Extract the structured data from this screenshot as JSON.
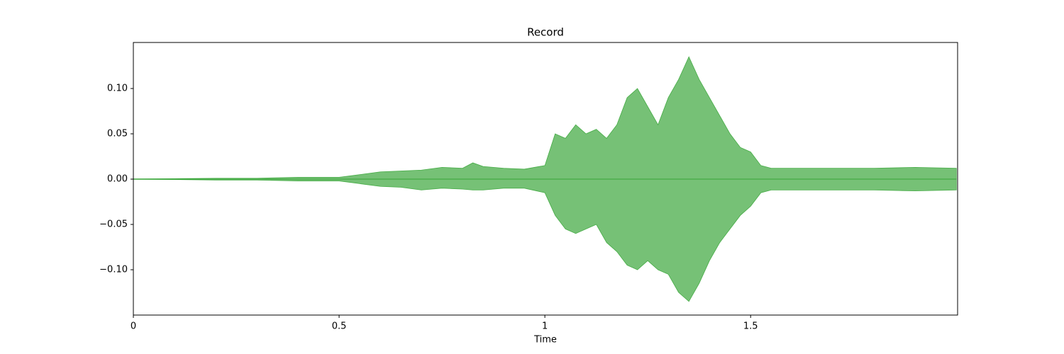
{
  "chart_data": {
    "type": "waveform",
    "title": "Record",
    "x_label": "Time",
    "x": [
      0,
      0.1,
      0.2,
      0.3,
      0.4,
      0.5,
      0.55,
      0.6,
      0.65,
      0.7,
      0.75,
      0.8,
      0.825,
      0.85,
      0.9,
      0.95,
      1.0,
      1.025,
      1.05,
      1.075,
      1.1,
      1.125,
      1.15,
      1.175,
      1.2,
      1.225,
      1.25,
      1.275,
      1.3,
      1.325,
      1.35,
      1.375,
      1.4,
      1.425,
      1.45,
      1.475,
      1.5,
      1.525,
      1.55,
      1.6,
      1.7,
      1.8,
      1.9,
      2.0
    ],
    "upper": [
      0.0003,
      0.0005,
      0.001,
      0.001,
      0.002,
      0.002,
      0.005,
      0.008,
      0.009,
      0.01,
      0.013,
      0.012,
      0.018,
      0.014,
      0.012,
      0.011,
      0.015,
      0.05,
      0.045,
      0.06,
      0.05,
      0.055,
      0.045,
      0.06,
      0.09,
      0.1,
      0.08,
      0.06,
      0.09,
      0.11,
      0.135,
      0.11,
      0.09,
      0.07,
      0.05,
      0.035,
      0.03,
      0.015,
      0.012,
      0.012,
      0.012,
      0.012,
      0.013,
      0.012
    ],
    "lower": [
      -0.0003,
      -0.0005,
      -0.001,
      -0.001,
      -0.002,
      -0.002,
      -0.005,
      -0.008,
      -0.009,
      -0.012,
      -0.01,
      -0.011,
      -0.012,
      -0.012,
      -0.01,
      -0.01,
      -0.015,
      -0.04,
      -0.055,
      -0.06,
      -0.055,
      -0.05,
      -0.07,
      -0.08,
      -0.095,
      -0.1,
      -0.09,
      -0.1,
      -0.105,
      -0.125,
      -0.135,
      -0.115,
      -0.09,
      -0.07,
      -0.055,
      -0.04,
      -0.03,
      -0.015,
      -0.012,
      -0.012,
      -0.012,
      -0.012,
      -0.013,
      -0.012
    ],
    "color": "#2ca02c",
    "xlim": [
      0,
      2.003
    ],
    "xticks": [
      0,
      0.5,
      1,
      1.5
    ],
    "ylim": [
      -0.15,
      0.1508
    ],
    "yticks": [
      {
        "value": -0.1,
        "label": "−0.10"
      },
      {
        "value": -0.05,
        "label": "−0.05"
      },
      {
        "value": 0,
        "label": "0.00"
      },
      {
        "value": 0.05,
        "label": "0.05"
      },
      {
        "value": 0.1,
        "label": "0.10"
      }
    ]
  }
}
